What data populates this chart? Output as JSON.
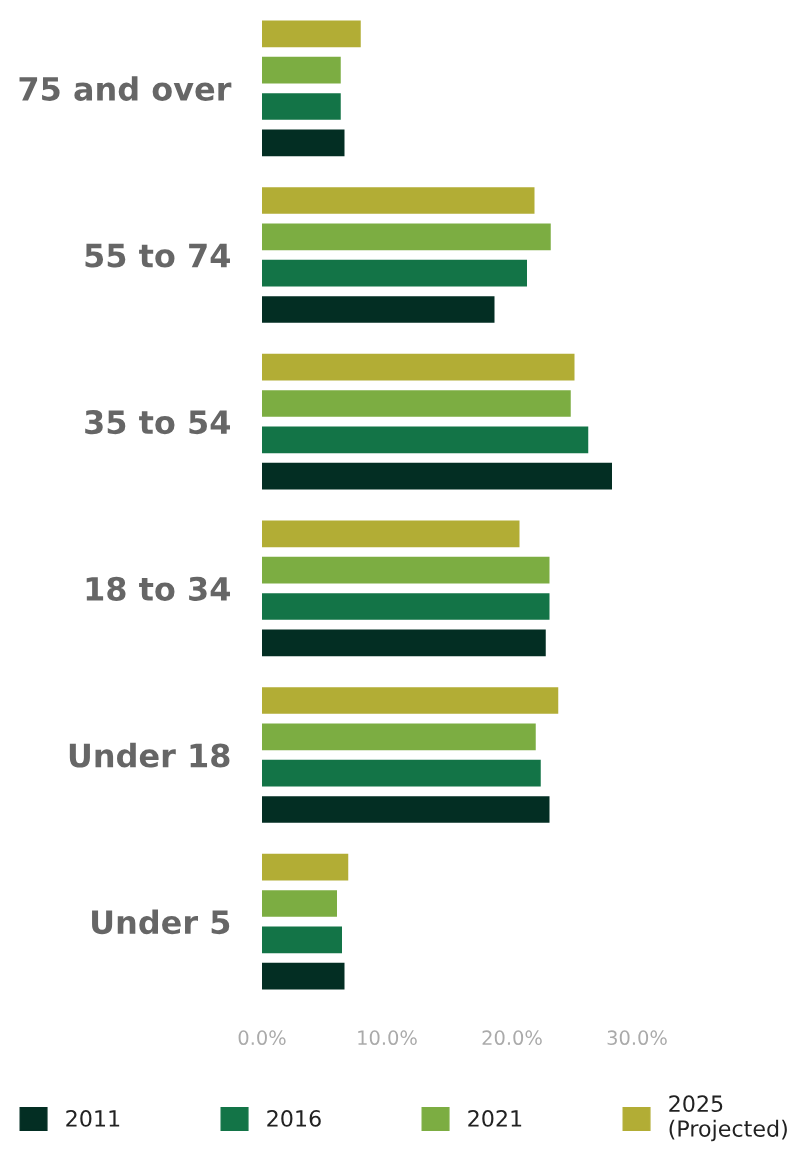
{
  "chart_data": {
    "type": "bar",
    "orientation": "horizontal",
    "categories": [
      "75 and over",
      "55 to 74",
      "35 to 54",
      "18 to 34",
      "Under 18",
      "Under 5"
    ],
    "series": [
      {
        "name": "2011",
        "color": "#032e23",
        "values": [
          6.6,
          18.6,
          28.0,
          22.7,
          23.0,
          6.6
        ]
      },
      {
        "name": "2016",
        "color": "#137447",
        "values": [
          6.3,
          21.2,
          26.1,
          23.0,
          22.3,
          6.4
        ]
      },
      {
        "name": "2021",
        "color": "#7cad42",
        "values": [
          6.3,
          23.1,
          24.7,
          23.0,
          21.9,
          6.0
        ]
      },
      {
        "name": "2025\n(Projected)",
        "color": "#b2ad35",
        "values": [
          7.9,
          21.8,
          25.0,
          20.6,
          23.7,
          6.9
        ]
      }
    ],
    "xlim": [
      0,
      30
    ],
    "xticks": [
      {
        "value": 0,
        "label": "0.0%"
      },
      {
        "value": 10,
        "label": "10.0%"
      },
      {
        "value": 20,
        "label": "20.0%"
      },
      {
        "value": 30,
        "label": "30.0%"
      }
    ],
    "grid": false,
    "legend": "bottom"
  }
}
